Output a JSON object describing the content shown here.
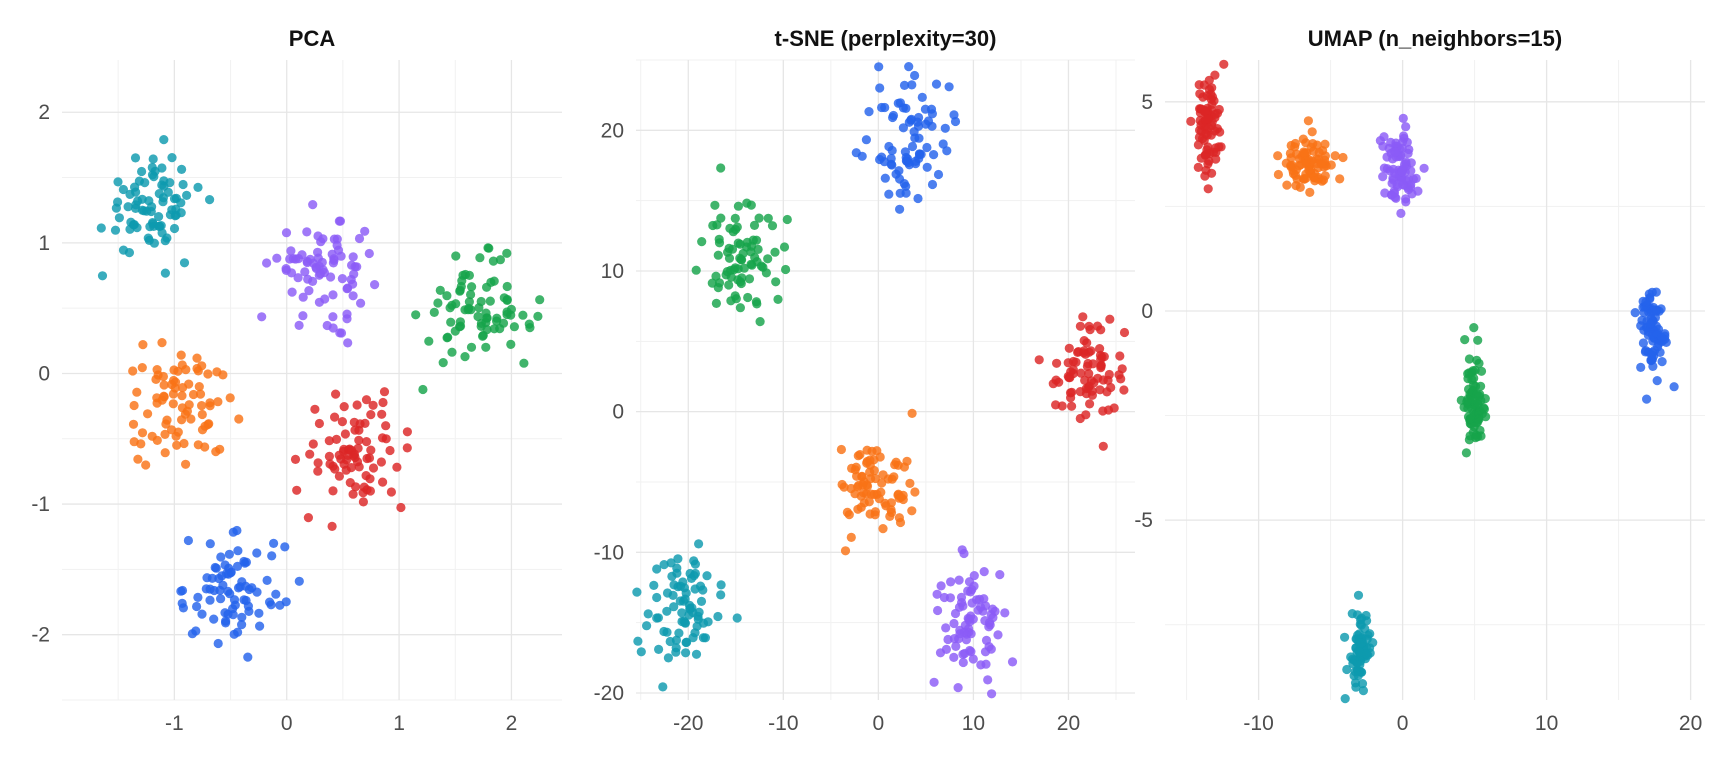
{
  "chart_data": [
    {
      "type": "scatter",
      "title": "PCA",
      "xlim": [
        -2.0,
        2.45
      ],
      "ylim": [
        -2.5,
        2.4
      ],
      "xticks": [
        -1,
        0,
        1,
        2
      ],
      "yticks": [
        -2,
        -1,
        0,
        1,
        2
      ],
      "grid": true,
      "clusters": [
        {
          "color": "#0E9AAE",
          "center": [
            -1.2,
            1.3
          ],
          "spread": [
            0.22,
            0.2
          ],
          "count": 80
        },
        {
          "color": "#8B5CF6",
          "center": [
            0.35,
            0.8
          ],
          "spread": [
            0.22,
            0.18
          ],
          "count": 80
        },
        {
          "color": "#16A34A",
          "center": [
            1.7,
            0.45
          ],
          "spread": [
            0.25,
            0.2
          ],
          "count": 80
        },
        {
          "color": "#F97316",
          "center": [
            -0.95,
            -0.25
          ],
          "spread": [
            0.24,
            0.22
          ],
          "count": 80
        },
        {
          "color": "#DC2626",
          "center": [
            0.6,
            -0.6
          ],
          "spread": [
            0.22,
            0.22
          ],
          "count": 80
        },
        {
          "color": "#2563EB",
          "center": [
            -0.45,
            -1.65
          ],
          "spread": [
            0.22,
            0.2
          ],
          "count": 80
        }
      ]
    },
    {
      "type": "scatter",
      "title": "t-SNE (perplexity=30)",
      "xlim": [
        -25.5,
        27
      ],
      "ylim": [
        -20.5,
        25
      ],
      "xticks": [
        -20,
        -10,
        0,
        10,
        20
      ],
      "yticks": [
        -20,
        -10,
        0,
        10,
        20
      ],
      "grid": true,
      "clusters": [
        {
          "color": "#2563EB",
          "center": [
            3.5,
            19.5
          ],
          "spread": [
            2.0,
            2.2
          ],
          "count": 80
        },
        {
          "color": "#16A34A",
          "center": [
            -14.5,
            11.0
          ],
          "spread": [
            2.0,
            2.0
          ],
          "count": 80
        },
        {
          "color": "#DC2626",
          "center": [
            22.0,
            3.0
          ],
          "spread": [
            2.0,
            1.8
          ],
          "count": 80
        },
        {
          "color": "#F97316",
          "center": [
            -0.5,
            -5.0
          ],
          "spread": [
            2.0,
            2.0
          ],
          "count": 80
        },
        {
          "color": "#0E9AAE",
          "center": [
            -20.5,
            -14.0
          ],
          "spread": [
            1.8,
            2.0
          ],
          "count": 80
        },
        {
          "color": "#8B5CF6",
          "center": [
            10.0,
            -15.0
          ],
          "spread": [
            2.0,
            2.0
          ],
          "count": 80
        }
      ]
    },
    {
      "type": "scatter",
      "title": "UMAP (n_neighbors=15)",
      "xlim": [
        -16.5,
        21
      ],
      "ylim": [
        -9.3,
        6.0
      ],
      "xticks": [
        -10,
        0,
        10,
        20
      ],
      "yticks": [
        -5,
        0,
        5
      ],
      "grid": true,
      "clusters": [
        {
          "color": "#DC2626",
          "center": [
            -13.5,
            4.5
          ],
          "spread": [
            0.45,
            0.6
          ],
          "count": 80
        },
        {
          "color": "#F97316",
          "center": [
            -6.5,
            3.5
          ],
          "spread": [
            1.0,
            0.35
          ],
          "count": 80
        },
        {
          "color": "#8B5CF6",
          "center": [
            -0.2,
            3.4
          ],
          "spread": [
            0.6,
            0.45
          ],
          "count": 80
        },
        {
          "color": "#2563EB",
          "center": [
            17.4,
            -0.5
          ],
          "spread": [
            0.45,
            0.55
          ],
          "count": 80
        },
        {
          "color": "#16A34A",
          "center": [
            5.0,
            -2.3
          ],
          "spread": [
            0.35,
            0.6
          ],
          "count": 80
        },
        {
          "color": "#0E9AAE",
          "center": [
            -3.0,
            -8.2
          ],
          "spread": [
            0.35,
            0.5
          ],
          "count": 80
        }
      ]
    }
  ]
}
